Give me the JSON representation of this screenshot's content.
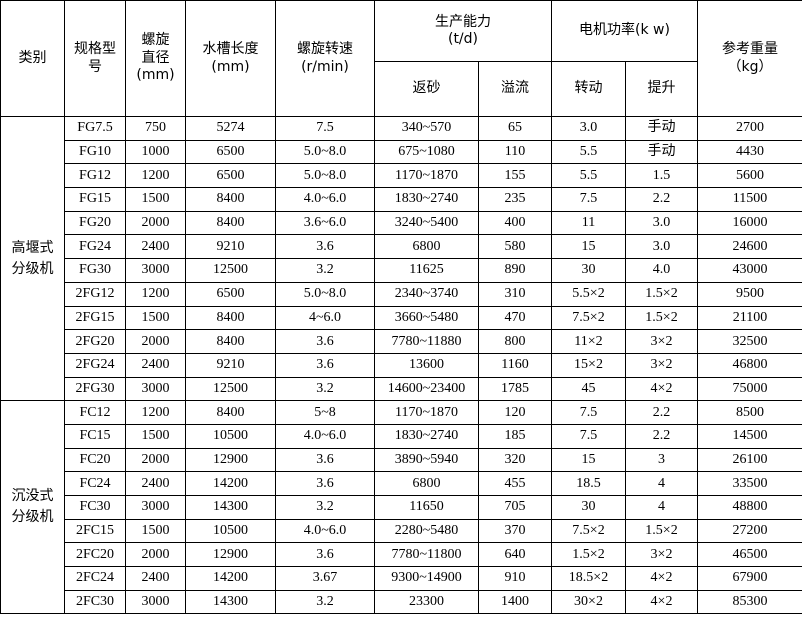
{
  "header": {
    "category": "类别",
    "model": "规格型\n号",
    "diameter": "螺旋\n直径\n(mm)",
    "length": "水槽长度\n(mm)",
    "speed": "螺旋转速\n(r/min)",
    "capacity": "生产能力\n(t/d)",
    "capacity_sub": [
      "返砂",
      "溢流"
    ],
    "power": "电机功率(k w)",
    "power_sub": [
      "转动",
      "提升"
    ],
    "weight": "参考重量\n（kg）"
  },
  "groups": [
    {
      "name": "高堰式\n分级机",
      "rows": [
        [
          "FG7.5",
          "750",
          "5274",
          "7.5",
          "340~570",
          "65",
          "3.0",
          "手动",
          "2700"
        ],
        [
          "FG10",
          "1000",
          "6500",
          "5.0~8.0",
          "675~1080",
          "110",
          "5.5",
          "手动",
          "4430"
        ],
        [
          "FG12",
          "1200",
          "6500",
          "5.0~8.0",
          "1170~1870",
          "155",
          "5.5",
          "1.5",
          "5600"
        ],
        [
          "FG15",
          "1500",
          "8400",
          "4.0~6.0",
          "1830~2740",
          "235",
          "7.5",
          "2.2",
          "11500"
        ],
        [
          "FG20",
          "2000",
          "8400",
          "3.6~6.0",
          "3240~5400",
          "400",
          "11",
          "3.0",
          "16000"
        ],
        [
          "FG24",
          "2400",
          "9210",
          "3.6",
          "6800",
          "580",
          "15",
          "3.0",
          "24600"
        ],
        [
          "FG30",
          "3000",
          "12500",
          "3.2",
          "11625",
          "890",
          "30",
          "4.0",
          "43000"
        ],
        [
          "2FG12",
          "1200",
          "6500",
          "5.0~8.0",
          "2340~3740",
          "310",
          "5.5×2",
          "1.5×2",
          "9500"
        ],
        [
          "2FG15",
          "1500",
          "8400",
          "4~6.0",
          "3660~5480",
          "470",
          "7.5×2",
          "1.5×2",
          "21100"
        ],
        [
          "2FG20",
          "2000",
          "8400",
          "3.6",
          "7780~11880",
          "800",
          "11×2",
          "3×2",
          "32500"
        ],
        [
          "2FG24",
          "2400",
          "9210",
          "3.6",
          "13600",
          "1160",
          "15×2",
          "3×2",
          "46800"
        ],
        [
          "2FG30",
          "3000",
          "12500",
          "3.2",
          "14600~23400",
          "1785",
          "45",
          "4×2",
          "75000"
        ]
      ]
    },
    {
      "name": "沉没式\n分级机",
      "rows": [
        [
          "FC12",
          "1200",
          "8400",
          "5~8",
          "1170~1870",
          "120",
          "7.5",
          "2.2",
          "8500"
        ],
        [
          "FC15",
          "1500",
          "10500",
          "4.0~6.0",
          "1830~2740",
          "185",
          "7.5",
          "2.2",
          "14500"
        ],
        [
          "FC20",
          "2000",
          "12900",
          "3.6",
          "3890~5940",
          "320",
          "15",
          "3",
          "26100"
        ],
        [
          "FC24",
          "2400",
          "14200",
          "3.6",
          "6800",
          "455",
          "18.5",
          "4",
          "33500"
        ],
        [
          "FC30",
          "3000",
          "14300",
          "3.2",
          "11650",
          "705",
          "30",
          "4",
          "48800"
        ],
        [
          "2FC15",
          "1500",
          "10500",
          "4.0~6.0",
          "2280~5480",
          "370",
          "7.5×2",
          "1.5×2",
          "27200"
        ],
        [
          "2FC20",
          "2000",
          "12900",
          "3.6",
          "7780~11800",
          "640",
          "1.5×2",
          "3×2",
          "46500"
        ],
        [
          "2FC24",
          "2400",
          "14200",
          "3.67",
          "9300~14900",
          "910",
          "18.5×2",
          "4×2",
          "67900"
        ],
        [
          "2FC30",
          "3000",
          "14300",
          "3.2",
          "23300",
          "1400",
          "30×2",
          "4×2",
          "85300"
        ]
      ]
    }
  ]
}
